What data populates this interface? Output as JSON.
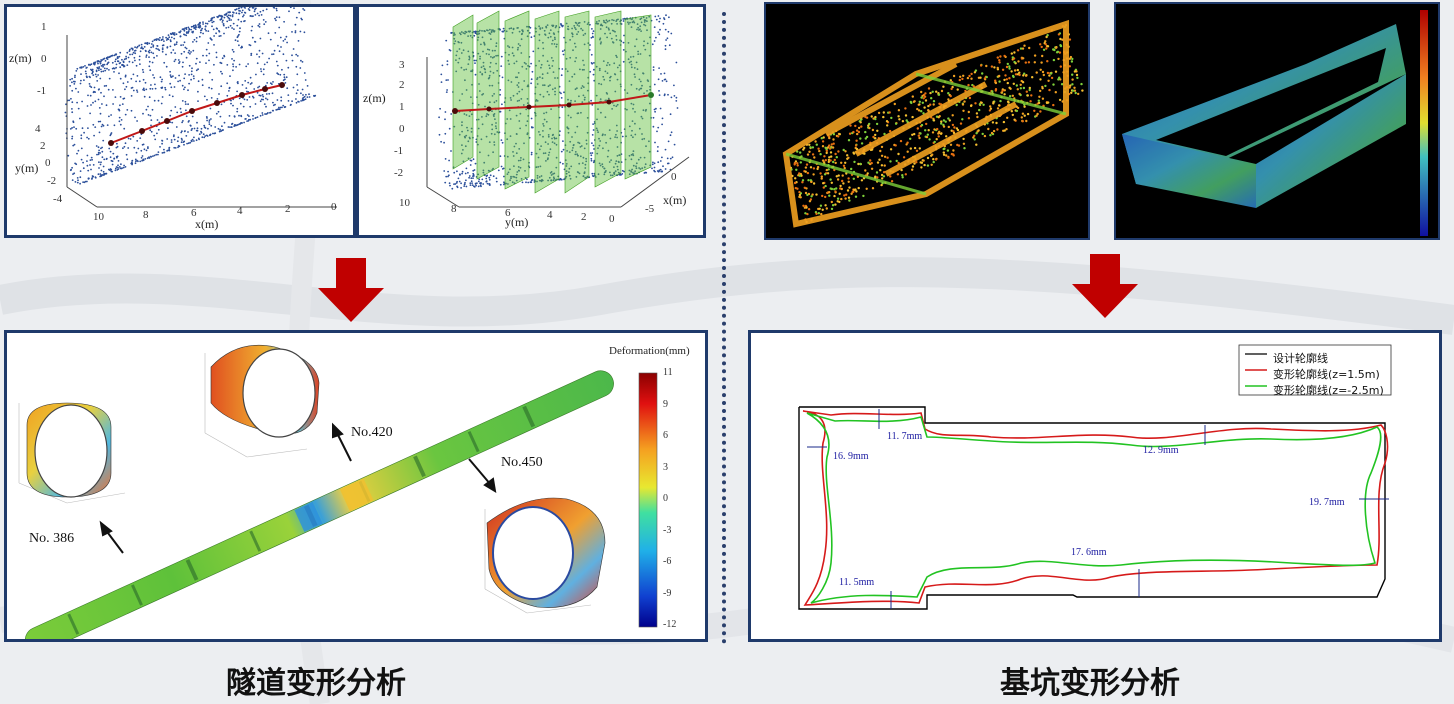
{
  "tunnel": {
    "plot1": {
      "z_label": "z(m)",
      "y_label": "y(m)",
      "x_label": "x(m)",
      "z_ticks": [
        "1",
        "0",
        "-1"
      ],
      "y_ticks": [
        "4",
        "2",
        "0",
        "-2",
        "-4"
      ],
      "x_ticks": [
        "10",
        "8",
        "6",
        "4",
        "2",
        "0"
      ]
    },
    "plot2": {
      "z_label": "z(m)",
      "y_label": "y(m)",
      "x_label": "x(m)",
      "z_ticks": [
        "3",
        "2",
        "1",
        "0",
        "-1",
        "-2"
      ],
      "y_ticks": [
        "10",
        "8",
        "6",
        "4",
        "2",
        "0"
      ],
      "x_ticks": [
        "0",
        "-5"
      ]
    },
    "deformation": {
      "colorbar_title": "Deformation(mm)",
      "colorbar_ticks": [
        "11",
        "9",
        "6",
        "3",
        "0",
        "-3",
        "-6",
        "-9",
        "-12"
      ],
      "labels": [
        "No. 386",
        "No.420",
        "No.450"
      ]
    },
    "caption": "隧道变形分析"
  },
  "pit": {
    "legend": [
      "设计轮廓线",
      "变形轮廓线(z=1.5m)",
      "变形轮廓线(z=-2.5m)"
    ],
    "measurements": [
      "11. 7mm",
      "16. 9mm",
      "12. 9mm",
      "19. 7mm",
      "17. 6mm",
      "11. 5mm"
    ],
    "caption": "基坑变形分析"
  },
  "colors": {
    "frame": "#1f3a6b",
    "arrow": "#c00000",
    "design": "#000000",
    "deform_upper": "#d61a1a",
    "deform_lower": "#22c322"
  }
}
